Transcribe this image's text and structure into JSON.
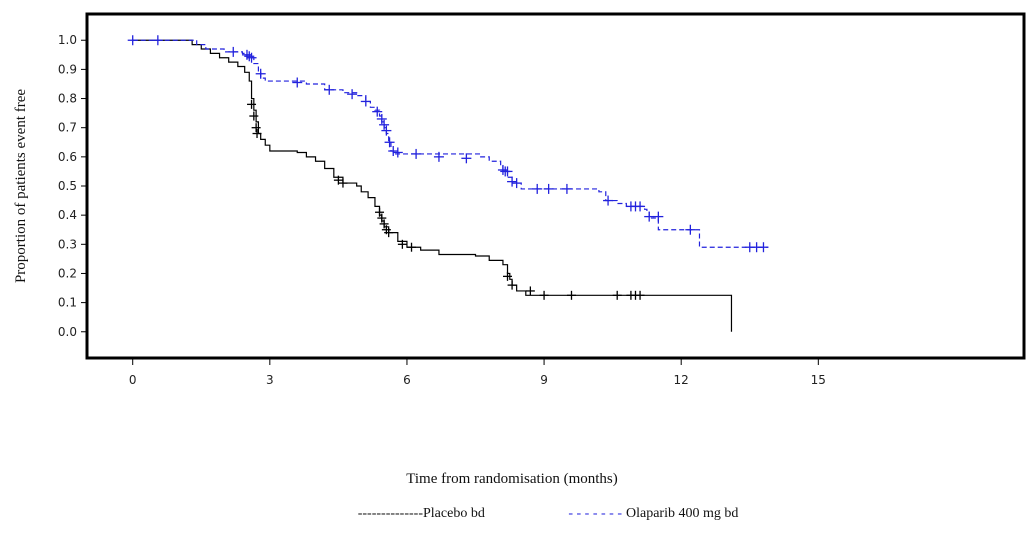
{
  "chart_data": {
    "type": "line",
    "subtype": "kaplan-meier",
    "title": "",
    "xlabel": "Time from randomisation (months)",
    "ylabel": "Proportion of patients event free",
    "xlim": [
      -1,
      19.5
    ],
    "ylim": [
      -0.09,
      1.09
    ],
    "x_ticks": [
      0,
      3,
      6,
      9,
      12,
      15
    ],
    "x_tick_labels": [
      "0",
      "3",
      "6",
      "9",
      "12",
      "15"
    ],
    "y_ticks": [
      0.0,
      0.1,
      0.2,
      0.3,
      0.4,
      0.5,
      0.6,
      0.7,
      0.8,
      0.9,
      1.0
    ],
    "y_tick_labels": [
      "0.0",
      "0.1",
      "0.2",
      "0.3",
      "0.4",
      "0.5",
      "0.6",
      "0.7",
      "0.8",
      "0.9",
      "1.0"
    ],
    "grid": false,
    "legend_position": "bottom-center",
    "legend_text": {
      "placebo_line": "--------------",
      "placebo_label": "Placebo bd",
      "olaparib_line": "- - - - - - -",
      "olaparib_label": "Olaparib 400 mg bd"
    },
    "series": [
      {
        "name": "Placebo bd",
        "color": "#000000",
        "line_style": "solid",
        "steps": [
          [
            0,
            1.0
          ],
          [
            1.2,
            1.0
          ],
          [
            1.3,
            0.985
          ],
          [
            1.5,
            0.97
          ],
          [
            1.7,
            0.955
          ],
          [
            1.9,
            0.94
          ],
          [
            2.1,
            0.925
          ],
          [
            2.3,
            0.91
          ],
          [
            2.45,
            0.89
          ],
          [
            2.55,
            0.86
          ],
          [
            2.6,
            0.8
          ],
          [
            2.65,
            0.76
          ],
          [
            2.7,
            0.72
          ],
          [
            2.75,
            0.68
          ],
          [
            2.8,
            0.66
          ],
          [
            2.9,
            0.64
          ],
          [
            3.0,
            0.62
          ],
          [
            3.6,
            0.615
          ],
          [
            3.8,
            0.6
          ],
          [
            4.0,
            0.585
          ],
          [
            4.2,
            0.56
          ],
          [
            4.4,
            0.53
          ],
          [
            4.6,
            0.51
          ],
          [
            4.9,
            0.5
          ],
          [
            5.0,
            0.48
          ],
          [
            5.15,
            0.46
          ],
          [
            5.3,
            0.43
          ],
          [
            5.4,
            0.4
          ],
          [
            5.45,
            0.38
          ],
          [
            5.5,
            0.36
          ],
          [
            5.6,
            0.34
          ],
          [
            5.8,
            0.31
          ],
          [
            6.0,
            0.29
          ],
          [
            6.3,
            0.28
          ],
          [
            6.7,
            0.265
          ],
          [
            7.5,
            0.26
          ],
          [
            7.8,
            0.245
          ],
          [
            8.1,
            0.23
          ],
          [
            8.2,
            0.2
          ],
          [
            8.25,
            0.18
          ],
          [
            8.3,
            0.16
          ],
          [
            8.4,
            0.14
          ],
          [
            8.6,
            0.125
          ],
          [
            13.1,
            0.125
          ],
          [
            13.1,
            0.0
          ]
        ],
        "censored": [
          [
            2.6,
            0.78
          ],
          [
            2.65,
            0.74
          ],
          [
            2.7,
            0.7
          ],
          [
            2.72,
            0.68
          ],
          [
            4.5,
            0.52
          ],
          [
            4.6,
            0.51
          ],
          [
            5.4,
            0.41
          ],
          [
            5.45,
            0.39
          ],
          [
            5.5,
            0.37
          ],
          [
            5.55,
            0.35
          ],
          [
            5.6,
            0.34
          ],
          [
            5.9,
            0.3
          ],
          [
            6.1,
            0.29
          ],
          [
            8.2,
            0.19
          ],
          [
            8.3,
            0.16
          ],
          [
            8.7,
            0.14
          ],
          [
            9.0,
            0.125
          ],
          [
            9.6,
            0.125
          ],
          [
            10.6,
            0.125
          ],
          [
            10.9,
            0.125
          ],
          [
            11.0,
            0.125
          ],
          [
            11.1,
            0.125
          ]
        ],
        "censor_size": 9
      },
      {
        "name": "Olaparib 400 mg bd",
        "color": "#2222dd",
        "line_style": "dashed",
        "steps": [
          [
            0,
            1.0
          ],
          [
            1.2,
            1.0
          ],
          [
            1.4,
            0.985
          ],
          [
            1.6,
            0.97
          ],
          [
            2.0,
            0.96
          ],
          [
            2.4,
            0.955
          ],
          [
            2.5,
            0.94
          ],
          [
            2.65,
            0.92
          ],
          [
            2.75,
            0.89
          ],
          [
            2.8,
            0.87
          ],
          [
            2.9,
            0.86
          ],
          [
            3.8,
            0.85
          ],
          [
            4.2,
            0.83
          ],
          [
            4.6,
            0.82
          ],
          [
            4.9,
            0.81
          ],
          [
            5.1,
            0.79
          ],
          [
            5.2,
            0.77
          ],
          [
            5.3,
            0.76
          ],
          [
            5.4,
            0.74
          ],
          [
            5.45,
            0.72
          ],
          [
            5.5,
            0.7
          ],
          [
            5.55,
            0.68
          ],
          [
            5.6,
            0.65
          ],
          [
            5.65,
            0.62
          ],
          [
            5.7,
            0.61
          ],
          [
            7.6,
            0.6
          ],
          [
            7.8,
            0.585
          ],
          [
            8.05,
            0.57
          ],
          [
            8.1,
            0.55
          ],
          [
            8.2,
            0.53
          ],
          [
            8.3,
            0.51
          ],
          [
            8.5,
            0.49
          ],
          [
            10.2,
            0.48
          ],
          [
            10.35,
            0.45
          ],
          [
            10.6,
            0.44
          ],
          [
            10.8,
            0.43
          ],
          [
            11.2,
            0.42
          ],
          [
            11.25,
            0.41
          ],
          [
            11.3,
            0.39
          ],
          [
            11.5,
            0.35
          ],
          [
            12.0,
            0.35
          ],
          [
            12.4,
            0.29
          ],
          [
            13.9,
            0.29
          ]
        ],
        "censored": [
          [
            0,
            1.0
          ],
          [
            0.55,
            1.0
          ],
          [
            2.2,
            0.96
          ],
          [
            2.5,
            0.95
          ],
          [
            2.55,
            0.945
          ],
          [
            2.6,
            0.94
          ],
          [
            2.8,
            0.885
          ],
          [
            3.6,
            0.855
          ],
          [
            4.3,
            0.83
          ],
          [
            4.8,
            0.815
          ],
          [
            5.1,
            0.79
          ],
          [
            5.35,
            0.755
          ],
          [
            5.45,
            0.73
          ],
          [
            5.5,
            0.71
          ],
          [
            5.55,
            0.69
          ],
          [
            5.62,
            0.65
          ],
          [
            5.7,
            0.62
          ],
          [
            5.8,
            0.615
          ],
          [
            6.2,
            0.61
          ],
          [
            6.7,
            0.6
          ],
          [
            7.3,
            0.595
          ],
          [
            8.1,
            0.555
          ],
          [
            8.15,
            0.55
          ],
          [
            8.2,
            0.55
          ],
          [
            8.3,
            0.515
          ],
          [
            8.4,
            0.51
          ],
          [
            8.85,
            0.49
          ],
          [
            9.1,
            0.49
          ],
          [
            9.5,
            0.49
          ],
          [
            10.4,
            0.45
          ],
          [
            10.9,
            0.43
          ],
          [
            11.0,
            0.43
          ],
          [
            11.1,
            0.43
          ],
          [
            11.3,
            0.395
          ],
          [
            11.5,
            0.395
          ],
          [
            12.2,
            0.35
          ],
          [
            13.5,
            0.29
          ],
          [
            13.65,
            0.29
          ],
          [
            13.8,
            0.29
          ]
        ],
        "censor_size": 10
      }
    ]
  }
}
